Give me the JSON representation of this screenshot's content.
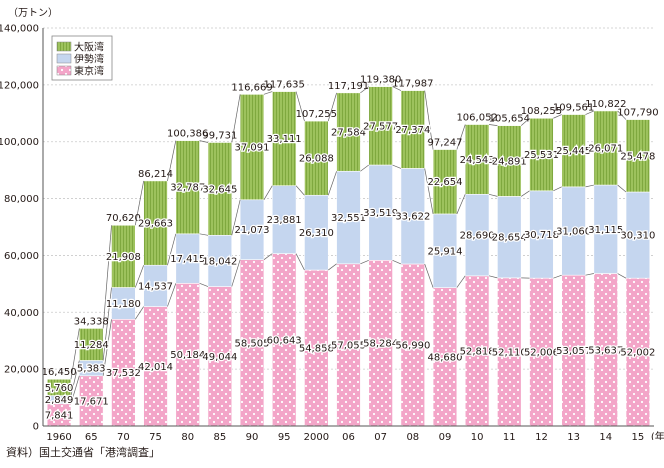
{
  "chart_data": {
    "type": "bar",
    "stacked": true,
    "unit": "（万トン）",
    "categories": [
      "1960",
      "65",
      "70",
      "75",
      "80",
      "85",
      "90",
      "95",
      "2000",
      "06",
      "07",
      "08",
      "09",
      "10",
      "11",
      "12",
      "13",
      "14",
      "15"
    ],
    "x_suffix": "(年度)",
    "series": [
      {
        "name": "東京湾",
        "color": "#f3a5c8",
        "values": [
          7841,
          17671,
          37532,
          42014,
          50184,
          49044,
          58505,
          60643,
          54858,
          57055,
          58284,
          56990,
          48680,
          52818,
          52110,
          52006,
          53057,
          53637,
          52002
        ]
      },
      {
        "name": "伊勢湾",
        "color": "#c5d6ef",
        "values": [
          2849,
          5383,
          11180,
          14537,
          17415,
          18042,
          21073,
          23881,
          26310,
          32551,
          33519,
          33622,
          25914,
          28690,
          28654,
          30718,
          31060,
          31115,
          30310
        ]
      },
      {
        "name": "大阪湾",
        "color": "#9dc25d",
        "values": [
          5760,
          11284,
          21908,
          29663,
          32787,
          32645,
          37091,
          33111,
          26088,
          27584,
          27577,
          27374,
          22654,
          24543,
          24891,
          25531,
          25445,
          26071,
          25478
        ]
      }
    ],
    "totals": [
      16450,
      34338,
      70620,
      86214,
      100386,
      99731,
      116669,
      117635,
      107255,
      117191,
      119380,
      117987,
      97247,
      106052,
      105654,
      108255,
      109561,
      110822,
      107790
    ],
    "legend_order": [
      "大阪湾",
      "伊勢湾",
      "東京湾"
    ],
    "legend_position": "top-left",
    "y_ticks": [
      0,
      20000,
      40000,
      60000,
      80000,
      100000,
      120000,
      140000
    ],
    "ylim": [
      0,
      140000
    ],
    "grid": true
  },
  "source": "資料）国土交通省「港湾調査」"
}
